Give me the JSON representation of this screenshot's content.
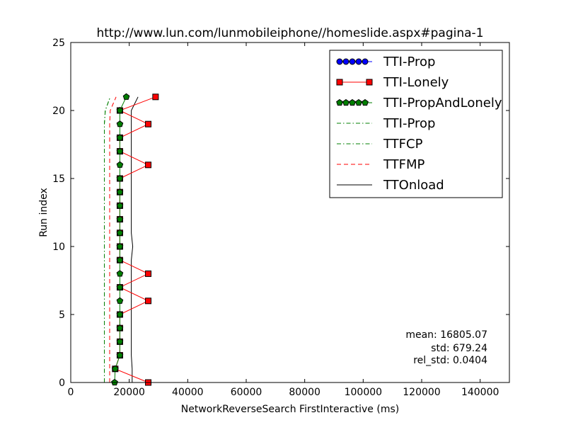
{
  "chart_data": {
    "type": "line",
    "title": "http://www.lun.com/lunmobileiphone//homeslide.aspx#pagina-1",
    "xlabel": "NetworkReverseSearch FirstInteractive (ms)",
    "ylabel": "Run index",
    "xlim": [
      0,
      150000
    ],
    "ylim": [
      0,
      25
    ],
    "xticks": [
      0,
      20000,
      40000,
      60000,
      80000,
      100000,
      120000,
      140000
    ],
    "yticks": [
      0,
      5,
      10,
      15,
      20,
      25
    ],
    "grid": false,
    "legend_position": "top-right",
    "series": [
      {
        "name": "TTI-Prop",
        "style": "marker-line",
        "marker": "circle",
        "color": "#0000ff",
        "x": [],
        "y": []
      },
      {
        "name": "TTI-Lonely",
        "style": "marker-line",
        "marker": "square",
        "color": "#ff0000",
        "x": [
          26500,
          15200,
          16800,
          16800,
          16800,
          16800,
          26500,
          16800,
          26500,
          16800,
          16800,
          16800,
          16800,
          16800,
          16800,
          16800,
          26500,
          16800,
          16800,
          26500,
          16800,
          29000
        ],
        "y": [
          0,
          1,
          2,
          3,
          4,
          5,
          6,
          7,
          8,
          9,
          10,
          11,
          12,
          13,
          14,
          15,
          16,
          17,
          18,
          19,
          20,
          21
        ]
      },
      {
        "name": "TTI-PropAndLonely",
        "style": "marker-line",
        "marker": "pentagon",
        "color": "#007f00",
        "x": [
          15000,
          15200,
          16800,
          16800,
          16800,
          16800,
          16800,
          16800,
          16800,
          16800,
          16800,
          16800,
          16800,
          16800,
          16800,
          16800,
          16800,
          16800,
          16800,
          16800,
          16800,
          19000
        ],
        "y": [
          0,
          1,
          2,
          3,
          4,
          5,
          6,
          7,
          8,
          9,
          10,
          11,
          12,
          13,
          14,
          15,
          16,
          17,
          18,
          19,
          20,
          21
        ]
      },
      {
        "name": "TTI-Prop",
        "style": "dashdot",
        "color": "#007f00",
        "x": [
          11500,
          11500,
          11500,
          11500,
          11500,
          11500,
          11500,
          11500,
          11500,
          11500,
          11500,
          11500,
          11500,
          11500,
          11500,
          11500,
          11500,
          11500,
          11500,
          11500,
          11800,
          13500
        ],
        "y": [
          0,
          1,
          2,
          3,
          4,
          5,
          6,
          7,
          8,
          9,
          10,
          11,
          12,
          13,
          14,
          15,
          16,
          17,
          18,
          19,
          20,
          21
        ]
      },
      {
        "name": "TTFCP",
        "style": "dashdot",
        "color": "#007f00",
        "x": [
          11500,
          11500,
          11500,
          11500,
          11500,
          11500,
          11500,
          11500,
          11500,
          11500,
          11500,
          11500,
          11500,
          11500,
          11500,
          11500,
          11500,
          11500,
          11500,
          11500,
          11800,
          13500
        ],
        "y": [
          0,
          1,
          2,
          3,
          4,
          5,
          6,
          7,
          8,
          9,
          10,
          11,
          12,
          13,
          14,
          15,
          16,
          17,
          18,
          19,
          20,
          21
        ]
      },
      {
        "name": "TTFMP",
        "style": "dashed",
        "color": "#ff0000",
        "x": [
          13300,
          13300,
          13300,
          13300,
          13300,
          13300,
          13300,
          13300,
          13300,
          13300,
          13300,
          13300,
          13300,
          13300,
          13300,
          13300,
          13300,
          13300,
          13300,
          13300,
          13500,
          15500
        ],
        "y": [
          0,
          1,
          2,
          3,
          4,
          5,
          6,
          7,
          8,
          9,
          10,
          11,
          12,
          13,
          14,
          15,
          16,
          17,
          18,
          19,
          20,
          21
        ]
      },
      {
        "name": "TTOnload",
        "style": "solid",
        "color": "#000000",
        "x": [
          21000,
          21000,
          20700,
          20700,
          20700,
          20700,
          20700,
          20700,
          20700,
          20700,
          21200,
          20700,
          20700,
          20700,
          20700,
          20700,
          20700,
          20700,
          20700,
          20700,
          20700,
          23000
        ],
        "y": [
          0,
          1,
          2,
          3,
          4,
          5,
          6,
          7,
          8,
          9,
          10,
          11,
          12,
          13,
          14,
          15,
          16,
          17,
          18,
          19,
          20,
          21
        ]
      }
    ],
    "annotations": {
      "mean": "mean: 16805.07",
      "std": "std: 679.24",
      "rel_std": "rel_std: 0.0404"
    }
  }
}
